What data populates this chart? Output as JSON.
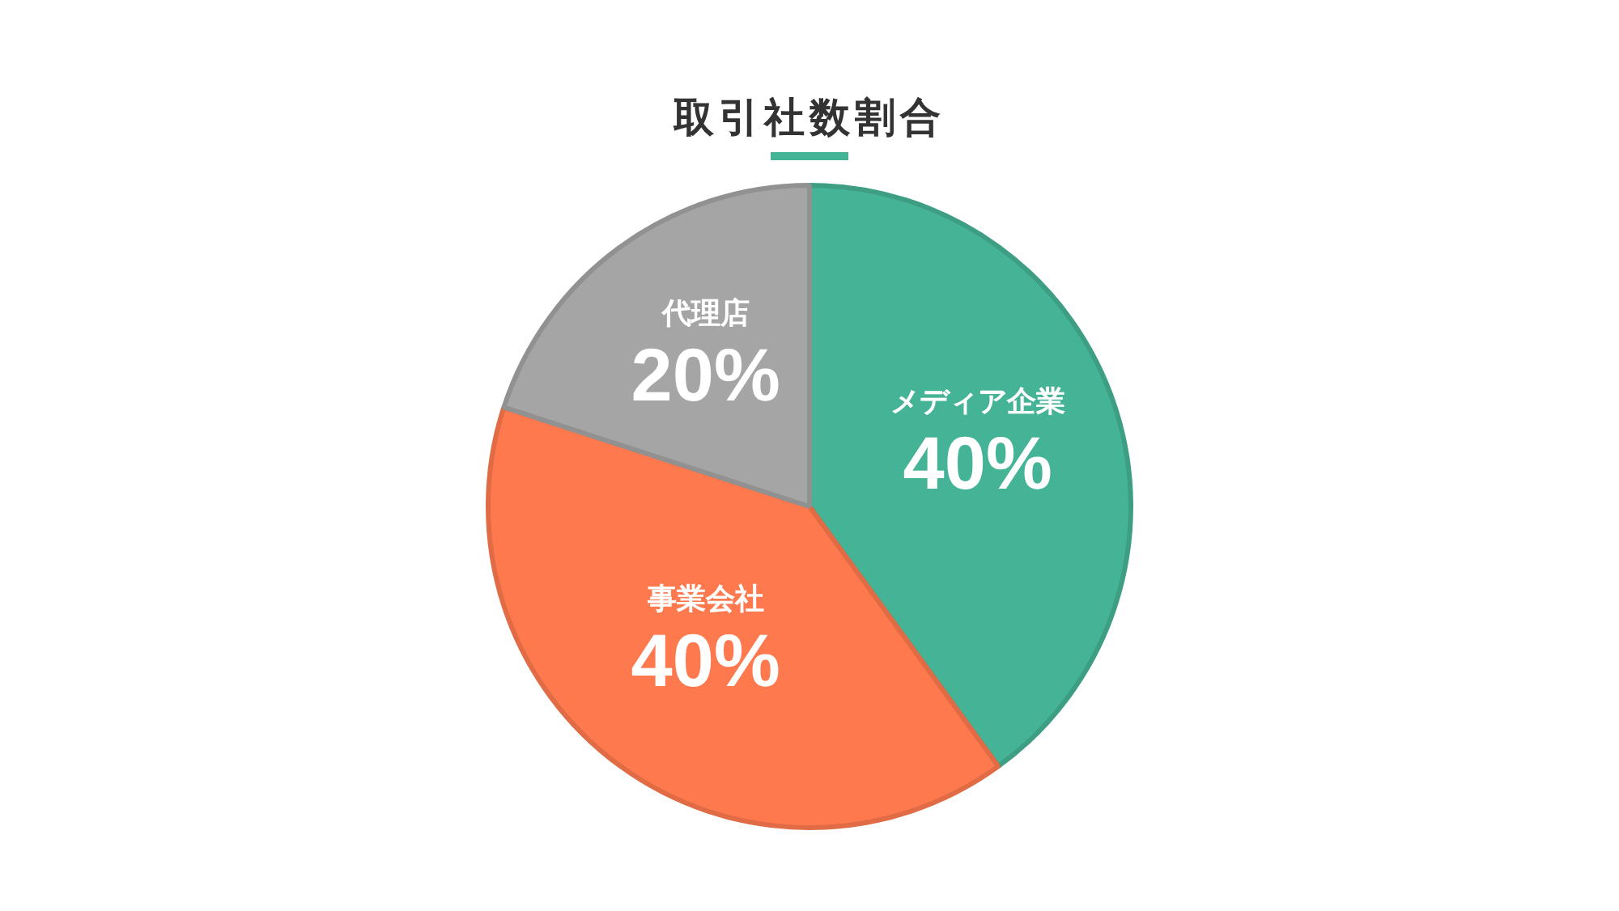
{
  "chart_data": {
    "type": "pie",
    "title": "取引社数割合",
    "categories": [
      "メディア企業",
      "事業会社",
      "代理店"
    ],
    "values": [
      40,
      40,
      20
    ],
    "colors": [
      "#45b395",
      "#fe7a4e",
      "#a5a5a5"
    ],
    "value_labels": [
      "40%",
      "40%",
      "20%"
    ],
    "legend": false
  }
}
